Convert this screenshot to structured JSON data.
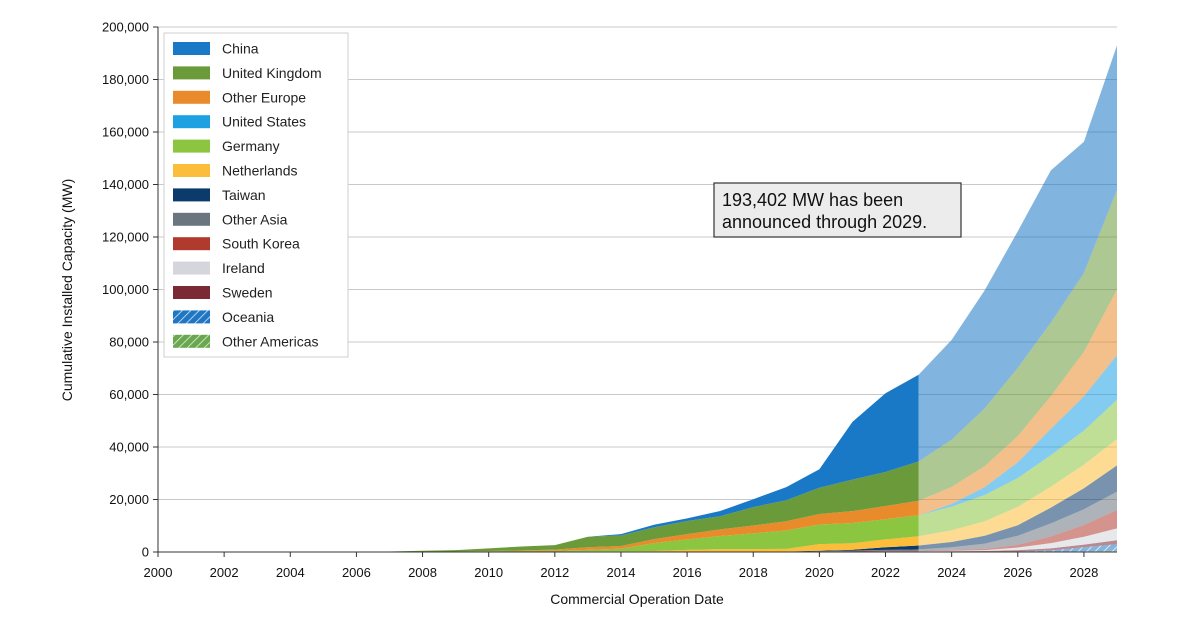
{
  "chart_data": {
    "type": "area",
    "stacked": true,
    "xlabel": "Commercial Operation Date",
    "ylabel": "Cumulative Installed Capacity (MW)",
    "xlim": [
      2000,
      2029
    ],
    "ylim": [
      0,
      200000
    ],
    "x_ticks": [
      "2000",
      "2002",
      "2004",
      "2006",
      "2008",
      "2010",
      "2012",
      "2014",
      "2016",
      "2018",
      "2020",
      "2022",
      "2024",
      "2026",
      "2028"
    ],
    "y_ticks": [
      "0",
      "20,000",
      "40,000",
      "60,000",
      "80,000",
      "100,000",
      "120,000",
      "140,000",
      "160,000",
      "180,000",
      "200,000"
    ],
    "grid": true,
    "legend_position": "top-left",
    "projection_starts": 2023,
    "x": [
      2000,
      2001,
      2002,
      2003,
      2004,
      2005,
      2006,
      2007,
      2008,
      2009,
      2010,
      2011,
      2012,
      2013,
      2014,
      2015,
      2016,
      2017,
      2018,
      2019,
      2020,
      2021,
      2022,
      2023,
      2024,
      2025,
      2026,
      2027,
      2028,
      2029
    ],
    "series": [
      {
        "name": "Other Americas",
        "color": "#6aa84f",
        "hatched": true,
        "values": [
          0,
          0,
          0,
          0,
          0,
          0,
          0,
          0,
          0,
          0,
          0,
          0,
          0,
          0,
          0,
          0,
          0,
          0,
          0,
          0,
          0,
          0,
          0,
          0,
          0,
          0,
          0,
          100,
          300,
          500
        ]
      },
      {
        "name": "Oceania",
        "color": "#1f77c4",
        "hatched": true,
        "values": [
          0,
          0,
          0,
          0,
          0,
          0,
          0,
          0,
          0,
          0,
          0,
          0,
          0,
          0,
          0,
          0,
          0,
          0,
          0,
          0,
          0,
          0,
          0,
          0,
          0,
          0,
          200,
          500,
          1500,
          2500
        ]
      },
      {
        "name": "Sweden",
        "color": "#7b2a35",
        "hatched": false,
        "values": [
          0,
          0,
          0,
          0,
          0,
          0,
          0,
          0,
          0,
          0,
          0,
          0,
          0,
          0,
          0,
          0,
          100,
          100,
          100,
          100,
          100,
          200,
          200,
          200,
          300,
          400,
          500,
          800,
          1000,
          1500
        ]
      },
      {
        "name": "Ireland",
        "color": "#d4d6db",
        "hatched": false,
        "values": [
          0,
          0,
          0,
          0,
          0,
          0,
          0,
          0,
          0,
          0,
          0,
          0,
          0,
          0,
          0,
          0,
          0,
          0,
          0,
          0,
          0,
          0,
          100,
          100,
          200,
          300,
          1000,
          2000,
          3000,
          4500
        ]
      },
      {
        "name": "South Korea",
        "color": "#b03a2e",
        "hatched": false,
        "values": [
          0,
          0,
          0,
          0,
          0,
          0,
          0,
          0,
          0,
          0,
          0,
          0,
          0,
          0,
          0,
          0,
          0,
          0,
          0,
          0,
          100,
          150,
          200,
          200,
          300,
          500,
          1000,
          2500,
          4500,
          7000
        ]
      },
      {
        "name": "Other Asia",
        "color": "#6b7580",
        "hatched": false,
        "values": [
          0,
          0,
          0,
          0,
          0,
          0,
          0,
          0,
          0,
          0,
          0,
          0,
          0,
          0,
          0,
          0,
          0,
          0,
          0,
          0,
          100,
          200,
          300,
          500,
          1000,
          2000,
          3500,
          5000,
          6000,
          7000
        ]
      },
      {
        "name": "Taiwan",
        "color": "#0b3b6b",
        "hatched": false,
        "values": [
          0,
          0,
          0,
          0,
          0,
          0,
          0,
          0,
          0,
          0,
          0,
          0,
          0,
          0,
          0,
          0,
          0,
          0,
          0,
          100,
          200,
          300,
          1000,
          1500,
          2000,
          3000,
          4000,
          6000,
          8000,
          10000
        ]
      },
      {
        "name": "Netherlands",
        "color": "#fbbd3a",
        "hatched": false,
        "values": [
          0,
          0,
          0,
          0,
          0,
          0,
          0,
          0,
          100,
          100,
          200,
          200,
          200,
          300,
          300,
          400,
          700,
          1000,
          1000,
          1000,
          2500,
          2500,
          3000,
          3500,
          4500,
          5500,
          7000,
          8000,
          9000,
          10000
        ]
      },
      {
        "name": "Germany",
        "color": "#8cc540",
        "hatched": false,
        "values": [
          0,
          0,
          0,
          0,
          0,
          0,
          0,
          0,
          0,
          0,
          100,
          200,
          300,
          500,
          1000,
          3000,
          4000,
          5000,
          6000,
          7000,
          7500,
          7700,
          7700,
          8000,
          9000,
          10000,
          11000,
          12000,
          13000,
          15000
        ]
      },
      {
        "name": "United States",
        "color": "#1ea1e3",
        "hatched": false,
        "values": [
          0,
          0,
          0,
          0,
          0,
          0,
          0,
          0,
          0,
          0,
          0,
          0,
          0,
          0,
          0,
          0,
          0,
          0,
          0,
          0,
          0,
          0,
          0,
          0,
          1000,
          3000,
          6000,
          10000,
          13000,
          17000
        ]
      },
      {
        "name": "Other Europe",
        "color": "#e98b2a",
        "hatched": false,
        "values": [
          0,
          0,
          0,
          0,
          0,
          0,
          0,
          0,
          100,
          100,
          100,
          200,
          400,
          1000,
          1000,
          1500,
          2000,
          2500,
          3000,
          3500,
          4000,
          4500,
          5000,
          5500,
          6500,
          8000,
          10000,
          12500,
          17000,
          25000
        ]
      },
      {
        "name": "United Kingdom",
        "color": "#6a9a3a",
        "hatched": false,
        "values": [
          0,
          0,
          0,
          0,
          0,
          0,
          100,
          200,
          300,
          500,
          1000,
          1500,
          1700,
          4000,
          4000,
          4500,
          5000,
          5000,
          7000,
          8000,
          10000,
          12000,
          13000,
          15000,
          18000,
          22000,
          26000,
          28000,
          30000,
          38000
        ]
      },
      {
        "name": "China",
        "color": "#1a79c7",
        "hatched": false,
        "values": [
          0,
          0,
          0,
          0,
          0,
          0,
          0,
          0,
          0,
          0,
          0,
          0,
          0,
          0,
          500,
          1000,
          1000,
          2000,
          3000,
          5000,
          7000,
          22000,
          30000,
          33000,
          38000,
          45000,
          52000,
          58000,
          50000,
          55000
        ]
      }
    ],
    "annotation": "193,402 MW has been announced through 2029."
  }
}
